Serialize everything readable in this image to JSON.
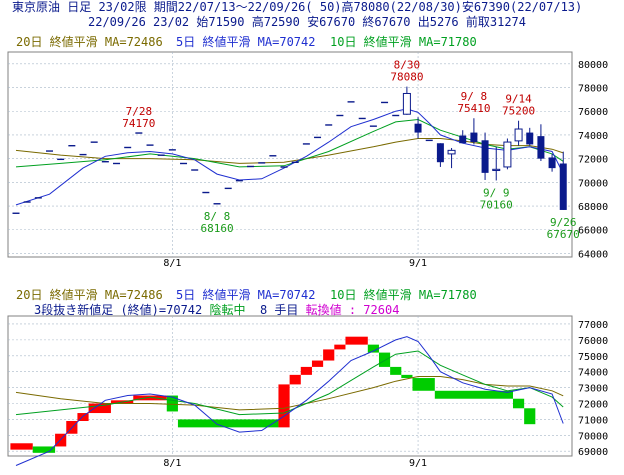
{
  "header": {
    "line1": "東京原油 日足 23/02限 期間22/07/13～22/09/26( 50)高78080(22/08/30)安67390(22/07/13)",
    "line2": "22/09/26 23/02 始71590 高72590 安67670 終67670 出5276 前取31274"
  },
  "legend_top": {
    "ma20": "20日 終値平滑 MA=72486",
    "ma5": "5日 終値平滑 MA=70742",
    "ma10": "10日 終値平滑 MA=71780"
  },
  "legend_bottom": {
    "ma20": "20日 終値平滑 MA=72486",
    "ma5": "5日 終値平滑 MA=70742",
    "ma10": "10日 終値平滑 MA=71780",
    "status_prefix": "3段抜き新値足 (終値)=70742 ",
    "status_phase": "陰転中",
    "status_count": "  8 手目 ",
    "status_reversal": "転換値 : 72604"
  },
  "colors": {
    "ma20": "#7a6a00",
    "ma5": "#1f2fd0",
    "ma10": "#00a020",
    "up": "#ff0000",
    "down": "#00cc00",
    "bear_candle": "#0a1a8c",
    "annotation_high": "#c00000",
    "annotation_low": "#1a9a1a",
    "grid": "#a8b8c8"
  },
  "chart_data": [
    {
      "type": "candlestick",
      "title": "東京原油 日足 23/02限",
      "y_ticks": [
        64000,
        66000,
        68000,
        70000,
        72000,
        74000,
        76000,
        78000,
        80000
      ],
      "ylim": [
        63700,
        81000
      ],
      "x_ticks": [
        {
          "label": "8/1",
          "day": 14
        },
        {
          "label": "9/1",
          "day": 36
        }
      ],
      "days": 50,
      "candles": [
        {
          "day": 0,
          "o": 67400,
          "h": 67400,
          "l": 67390,
          "c": 67390
        },
        {
          "day": 1,
          "o": 68350,
          "h": 68350,
          "l": 68340,
          "c": 68340
        },
        {
          "day": 2,
          "o": 68700,
          "h": 68700,
          "l": 68690,
          "c": 68690
        },
        {
          "day": 3,
          "o": 72650,
          "h": 72650,
          "l": 72640,
          "c": 72640
        },
        {
          "day": 4,
          "o": 71950,
          "h": 71950,
          "l": 71940,
          "c": 71940
        },
        {
          "day": 5,
          "o": 73100,
          "h": 73100,
          "l": 73090,
          "c": 73090
        },
        {
          "day": 6,
          "o": 72350,
          "h": 72350,
          "l": 72340,
          "c": 72340
        },
        {
          "day": 7,
          "o": 73400,
          "h": 73400,
          "l": 73390,
          "c": 73390
        },
        {
          "day": 8,
          "o": 71750,
          "h": 71750,
          "l": 71740,
          "c": 71740
        },
        {
          "day": 9,
          "o": 71600,
          "h": 71600,
          "l": 71590,
          "c": 71590
        },
        {
          "day": 10,
          "o": 72950,
          "h": 72950,
          "l": 72940,
          "c": 72940
        },
        {
          "day": 11,
          "o": 74170,
          "h": 74170,
          "l": 74160,
          "c": 74160
        },
        {
          "day": 12,
          "o": 73150,
          "h": 73150,
          "l": 73140,
          "c": 73140
        },
        {
          "day": 13,
          "o": 72300,
          "h": 72300,
          "l": 72290,
          "c": 72290
        },
        {
          "day": 14,
          "o": 72750,
          "h": 72750,
          "l": 72740,
          "c": 72740
        },
        {
          "day": 15,
          "o": 71600,
          "h": 71600,
          "l": 71590,
          "c": 71590
        },
        {
          "day": 16,
          "o": 71050,
          "h": 71050,
          "l": 71040,
          "c": 71040
        },
        {
          "day": 17,
          "o": 69150,
          "h": 69150,
          "l": 69140,
          "c": 69140
        },
        {
          "day": 18,
          "o": 68200,
          "h": 68200,
          "l": 68160,
          "c": 68160
        },
        {
          "day": 19,
          "o": 69500,
          "h": 69500,
          "l": 69490,
          "c": 69490
        },
        {
          "day": 20,
          "o": 70150,
          "h": 70150,
          "l": 70140,
          "c": 70140
        },
        {
          "day": 21,
          "o": 71350,
          "h": 71350,
          "l": 71340,
          "c": 71340
        },
        {
          "day": 22,
          "o": 71650,
          "h": 71650,
          "l": 71640,
          "c": 71640
        },
        {
          "day": 23,
          "o": 72250,
          "h": 72250,
          "l": 72240,
          "c": 72240
        },
        {
          "day": 24,
          "o": 71300,
          "h": 71300,
          "l": 71290,
          "c": 71290
        },
        {
          "day": 25,
          "o": 71700,
          "h": 71700,
          "l": 71690,
          "c": 71690
        },
        {
          "day": 26,
          "o": 73250,
          "h": 73250,
          "l": 73240,
          "c": 73240
        },
        {
          "day": 27,
          "o": 73800,
          "h": 73800,
          "l": 73790,
          "c": 73790
        },
        {
          "day": 28,
          "o": 74850,
          "h": 74850,
          "l": 74840,
          "c": 74840
        },
        {
          "day": 29,
          "o": 75650,
          "h": 75650,
          "l": 75640,
          "c": 75640
        },
        {
          "day": 30,
          "o": 76800,
          "h": 76800,
          "l": 76790,
          "c": 76790
        },
        {
          "day": 31,
          "o": 75400,
          "h": 75400,
          "l": 75390,
          "c": 75390
        },
        {
          "day": 32,
          "o": 74750,
          "h": 74750,
          "l": 74740,
          "c": 74740
        },
        {
          "day": 33,
          "o": 76750,
          "h": 76750,
          "l": 76740,
          "c": 76740
        },
        {
          "day": 34,
          "o": 75650,
          "h": 75650,
          "l": 75640,
          "c": 75640
        },
        {
          "day": 35,
          "o": 75750,
          "h": 78080,
          "l": 75700,
          "c": 77500
        },
        {
          "day": 36,
          "o": 74950,
          "h": 75500,
          "l": 73700,
          "c": 74200
        },
        {
          "day": 37,
          "o": 73550,
          "h": 73550,
          "l": 73550,
          "c": 73550
        },
        {
          "day": 38,
          "o": 73300,
          "h": 73300,
          "l": 71300,
          "c": 71700
        },
        {
          "day": 39,
          "o": 72400,
          "h": 72900,
          "l": 71200,
          "c": 72700
        },
        {
          "day": 40,
          "o": 73950,
          "h": 74400,
          "l": 73300,
          "c": 73300
        },
        {
          "day": 41,
          "o": 74200,
          "h": 75410,
          "l": 73200,
          "c": 73400
        },
        {
          "day": 42,
          "o": 73550,
          "h": 74200,
          "l": 70200,
          "c": 70800
        },
        {
          "day": 43,
          "o": 71000,
          "h": 73000,
          "l": 70160,
          "c": 71100
        },
        {
          "day": 44,
          "o": 71300,
          "h": 73700,
          "l": 71100,
          "c": 73400
        },
        {
          "day": 45,
          "o": 73500,
          "h": 75200,
          "l": 73100,
          "c": 74500
        },
        {
          "day": 46,
          "o": 74200,
          "h": 74600,
          "l": 73100,
          "c": 73200
        },
        {
          "day": 47,
          "o": 73900,
          "h": 74900,
          "l": 71800,
          "c": 72000
        },
        {
          "day": 48,
          "o": 72100,
          "h": 72400,
          "l": 70900,
          "c": 71200
        },
        {
          "day": 49,
          "o": 71590,
          "h": 72590,
          "l": 67670,
          "c": 67670
        }
      ],
      "ma5": [
        [
          0,
          68100
        ],
        [
          3,
          69000
        ],
        [
          6,
          71200
        ],
        [
          8,
          72200
        ],
        [
          10,
          72500
        ],
        [
          12,
          72600
        ],
        [
          14,
          72400
        ],
        [
          16,
          71900
        ],
        [
          18,
          70700
        ],
        [
          20,
          70200
        ],
        [
          22,
          70300
        ],
        [
          24,
          71200
        ],
        [
          26,
          72200
        ],
        [
          28,
          73400
        ],
        [
          30,
          74700
        ],
        [
          32,
          75300
        ],
        [
          34,
          76000
        ],
        [
          35,
          76200
        ],
        [
          36,
          75900
        ],
        [
          37,
          75000
        ],
        [
          38,
          74000
        ],
        [
          40,
          73300
        ],
        [
          42,
          72900
        ],
        [
          44,
          72700
        ],
        [
          46,
          73000
        ],
        [
          48,
          72600
        ],
        [
          49,
          70742
        ]
      ],
      "ma10": [
        [
          0,
          71300
        ],
        [
          4,
          71600
        ],
        [
          8,
          71900
        ],
        [
          12,
          72400
        ],
        [
          16,
          72000
        ],
        [
          20,
          71300
        ],
        [
          24,
          71400
        ],
        [
          28,
          72600
        ],
        [
          32,
          74300
        ],
        [
          34,
          75100
        ],
        [
          36,
          75300
        ],
        [
          38,
          74400
        ],
        [
          40,
          73800
        ],
        [
          42,
          73200
        ],
        [
          44,
          72800
        ],
        [
          46,
          73000
        ],
        [
          48,
          72400
        ],
        [
          49,
          71780
        ]
      ],
      "ma20": [
        [
          0,
          72700
        ],
        [
          4,
          72300
        ],
        [
          8,
          72000
        ],
        [
          12,
          72000
        ],
        [
          16,
          71900
        ],
        [
          20,
          71600
        ],
        [
          24,
          71700
        ],
        [
          28,
          72300
        ],
        [
          32,
          73000
        ],
        [
          34,
          73400
        ],
        [
          36,
          73700
        ],
        [
          38,
          73700
        ],
        [
          40,
          73500
        ],
        [
          42,
          73200
        ],
        [
          44,
          73100
        ],
        [
          46,
          73100
        ],
        [
          48,
          72800
        ],
        [
          49,
          72486
        ]
      ],
      "annotations": [
        {
          "date": "7/28",
          "value": "74170",
          "day": 11,
          "kind": "high"
        },
        {
          "date": "8/ 8",
          "value": "68160",
          "day": 18,
          "kind": "low"
        },
        {
          "date": "8/30",
          "value": "78080",
          "day": 35,
          "kind": "high"
        },
        {
          "date": "9/ 8",
          "value": "75410",
          "day": 41,
          "kind": "high"
        },
        {
          "date": "9/ 9",
          "value": "70160",
          "day": 43,
          "kind": "low"
        },
        {
          "date": "9/14",
          "value": "75200",
          "day": 45,
          "kind": "high"
        },
        {
          "date": "9/26",
          "value": "67670",
          "day": 49,
          "kind": "low"
        }
      ]
    },
    {
      "type": "three-line-break",
      "title": "3段抜き新値足 (終値)",
      "y_ticks": [
        69000,
        70000,
        71000,
        72000,
        73000,
        74000,
        75000,
        76000,
        77000
      ],
      "ylim": [
        68700,
        77500
      ],
      "x_ticks": [
        {
          "label": "8/1",
          "day": 14
        },
        {
          "label": "9/1",
          "day": 36
        }
      ],
      "bricks": [
        {
          "d0": 0,
          "d1": 2,
          "lo": 69100,
          "hi": 69500,
          "up": true
        },
        {
          "d0": 2,
          "d1": 4,
          "lo": 68900,
          "hi": 69300,
          "up": false
        },
        {
          "d0": 4,
          "d1": 5,
          "lo": 69300,
          "hi": 70100,
          "up": true
        },
        {
          "d0": 5,
          "d1": 6,
          "lo": 70100,
          "hi": 70900,
          "up": true
        },
        {
          "d0": 6,
          "d1": 7,
          "lo": 70900,
          "hi": 71400,
          "up": true
        },
        {
          "d0": 7,
          "d1": 9,
          "lo": 71400,
          "hi": 72000,
          "up": true
        },
        {
          "d0": 9,
          "d1": 11,
          "lo": 72000,
          "hi": 72200,
          "up": true
        },
        {
          "d0": 11,
          "d1": 14,
          "lo": 72200,
          "hi": 72500,
          "up": true
        },
        {
          "d0": 14,
          "d1": 15,
          "lo": 71500,
          "hi": 72500,
          "up": false
        },
        {
          "d0": 15,
          "d1": 24,
          "lo": 70500,
          "hi": 71000,
          "up": false
        },
        {
          "d0": 24,
          "d1": 25,
          "lo": 70500,
          "hi": 73200,
          "up": true
        },
        {
          "d0": 25,
          "d1": 26,
          "lo": 73200,
          "hi": 73800,
          "up": true
        },
        {
          "d0": 26,
          "d1": 27,
          "lo": 73800,
          "hi": 74300,
          "up": true
        },
        {
          "d0": 27,
          "d1": 28,
          "lo": 74300,
          "hi": 74700,
          "up": true
        },
        {
          "d0": 28,
          "d1": 29,
          "lo": 74700,
          "hi": 75400,
          "up": true
        },
        {
          "d0": 29,
          "d1": 30,
          "lo": 75400,
          "hi": 75700,
          "up": true
        },
        {
          "d0": 30,
          "d1": 32,
          "lo": 75700,
          "hi": 76200,
          "up": true
        },
        {
          "d0": 32,
          "d1": 33,
          "lo": 75200,
          "hi": 75700,
          "up": false
        },
        {
          "d0": 33,
          "d1": 34,
          "lo": 74300,
          "hi": 75200,
          "up": false
        },
        {
          "d0": 34,
          "d1": 35,
          "lo": 73800,
          "hi": 74300,
          "up": false
        },
        {
          "d0": 35,
          "d1": 36,
          "lo": 73600,
          "hi": 73800,
          "up": false
        },
        {
          "d0": 36,
          "d1": 38,
          "lo": 72800,
          "hi": 73600,
          "up": false
        },
        {
          "d0": 38,
          "d1": 45,
          "lo": 72300,
          "hi": 72800,
          "up": false
        },
        {
          "d0": 45,
          "d1": 46,
          "lo": 71700,
          "hi": 72300,
          "up": false
        },
        {
          "d0": 46,
          "d1": 47,
          "lo": 70700,
          "hi": 71700,
          "up": false
        }
      ]
    }
  ]
}
